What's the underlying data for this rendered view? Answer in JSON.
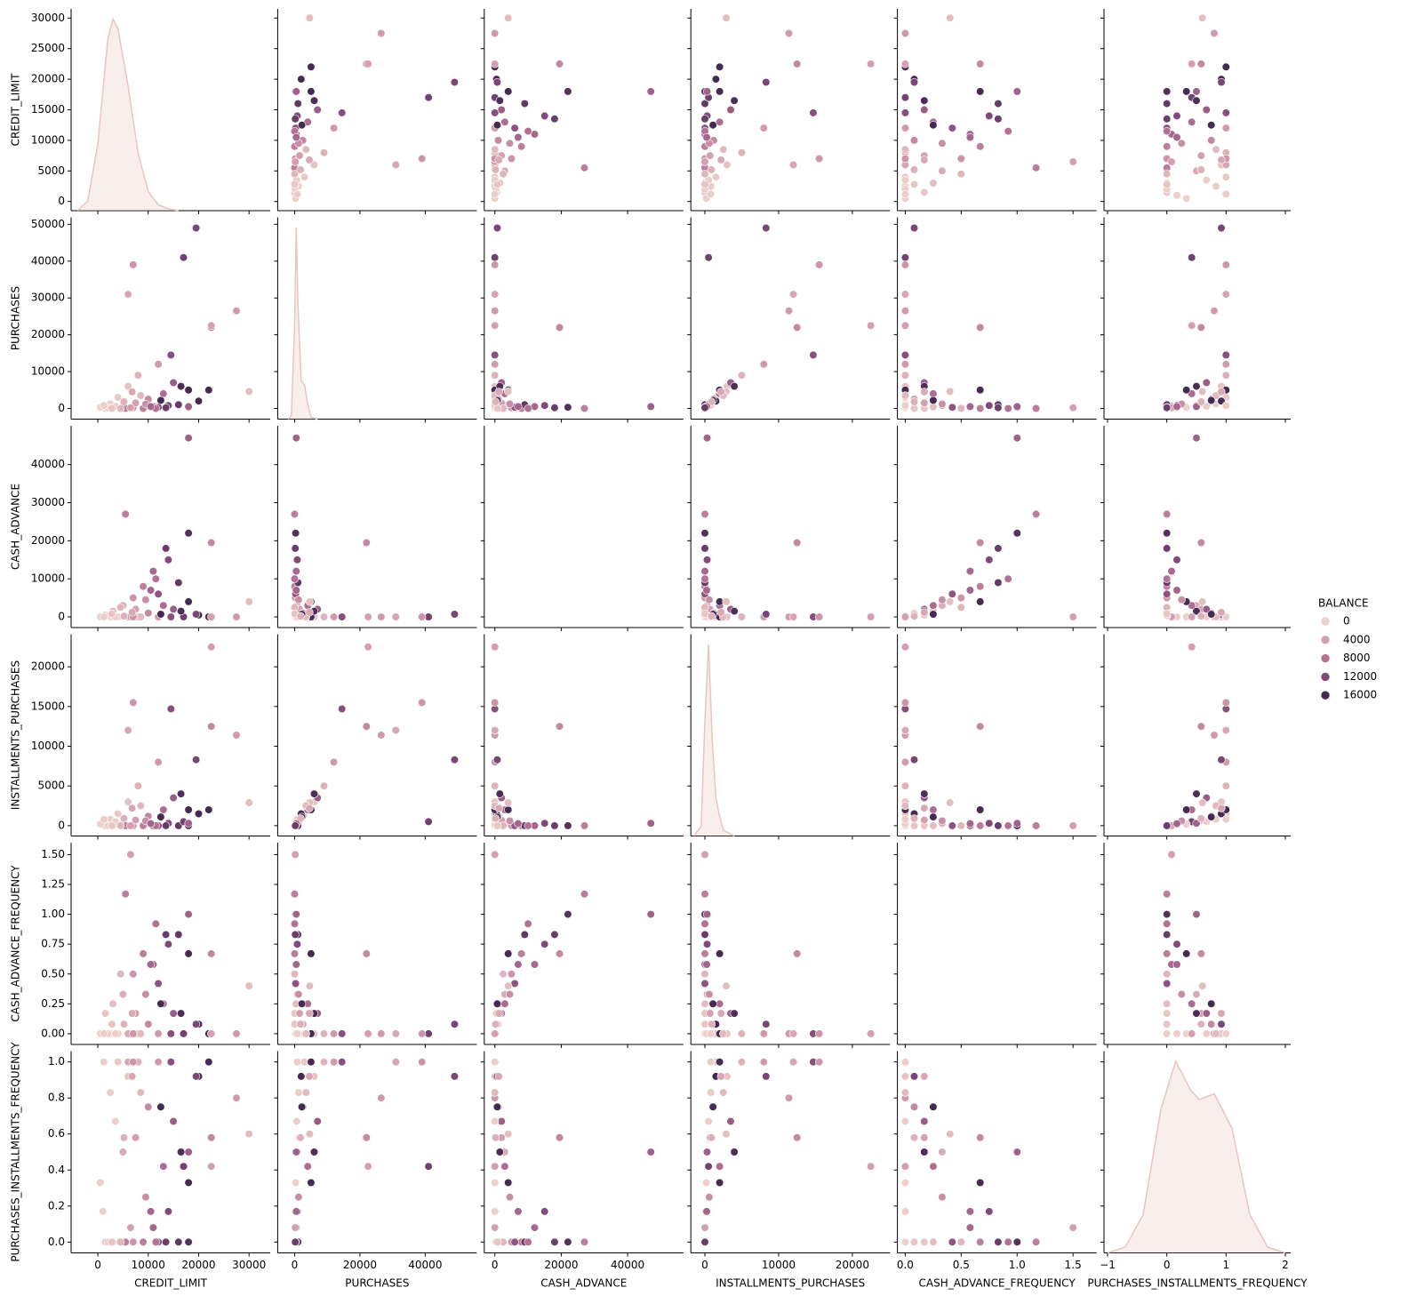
{
  "chart_data": {
    "type": "pairplot",
    "variables": [
      "CREDIT_LIMIT",
      "PURCHASES",
      "CASH_ADVANCE",
      "INSTALLMENTS_PURCHASES",
      "CASH_ADVANCE_FREQUENCY",
      "PURCHASES_INSTALLMENTS_FREQUENCY"
    ],
    "axes": [
      {
        "xlim": [
          -5300,
          34200
        ],
        "xticks": [
          0,
          10000,
          20000,
          30000
        ],
        "ylim": [
          -1500,
          31500
        ],
        "yticks": [
          0,
          5000,
          10000,
          15000,
          20000,
          25000,
          30000
        ]
      },
      {
        "xlim": [
          -5200,
          55800
        ],
        "xticks": [
          0,
          20000,
          40000
        ],
        "ylim": [
          -2900,
          51900
        ],
        "yticks": [
          0,
          10000,
          20000,
          30000,
          40000,
          50000
        ]
      },
      {
        "xlim": [
          -3200,
          56800
        ],
        "xticks": [
          0,
          20000,
          40000
        ],
        "ylim": [
          -2800,
          50200
        ],
        "yticks": [
          0,
          10000,
          20000,
          30000,
          40000
        ]
      },
      {
        "xlim": [
          -1900,
          25100
        ],
        "xticks": [
          0,
          10000,
          20000
        ],
        "ylim": [
          -1300,
          24100
        ],
        "yticks": [
          0,
          5000,
          10000,
          15000,
          20000
        ]
      },
      {
        "xlim": [
          -0.07,
          1.71
        ],
        "xticks": [
          {
            "value": 0,
            "label": "0.0"
          },
          {
            "value": 0.5,
            "label": "0.5"
          },
          {
            "value": 1,
            "label": "1.0"
          },
          {
            "value": 1.5,
            "label": "1.5"
          }
        ],
        "ylim": [
          -0.09,
          1.6
        ],
        "yticks": [
          {
            "value": 0,
            "label": "0.00"
          },
          {
            "value": 0.25,
            "label": "0.25"
          },
          {
            "value": 0.5,
            "label": "0.50"
          },
          {
            "value": 0.75,
            "label": "0.75"
          },
          {
            "value": 1,
            "label": "1.00"
          },
          {
            "value": 1.25,
            "label": "1.25"
          },
          {
            "value": 1.5,
            "label": "1.50"
          }
        ]
      },
      {
        "xlim": [
          -1.06,
          2.09
        ],
        "xticks": [
          {
            "value": -1,
            "label": "−1"
          },
          0,
          1,
          2
        ],
        "ylim": [
          -0.06,
          1.06
        ],
        "yticks": [
          {
            "value": 0,
            "label": "0.0"
          },
          {
            "value": 0.2,
            "label": "0.2"
          },
          {
            "value": 0.4,
            "label": "0.4"
          },
          {
            "value": 0.6,
            "label": "0.6"
          },
          {
            "value": 0.8,
            "label": "0.8"
          },
          {
            "value": 1,
            "label": "1.0"
          }
        ]
      }
    ],
    "hue": {
      "name": "BALANCE",
      "levels": [
        0,
        4000,
        8000,
        12000,
        16000
      ],
      "colors": [
        "#ecd0cb",
        "#d4a0b0",
        "#b27294",
        "#804a7a",
        "#452a52"
      ]
    },
    "kde": [
      {
        "x": [
          -4000,
          -2000,
          0,
          2000,
          3000,
          4000,
          6000,
          8000,
          10000,
          12000,
          14000,
          16000
        ],
        "density": [
          0,
          0.05,
          0.35,
          0.9,
          1.0,
          0.95,
          0.65,
          0.3,
          0.1,
          0.03,
          0.01,
          0
        ]
      },
      {
        "x": [
          -2000,
          -1000,
          0,
          500,
          1000,
          2000,
          3000,
          4000,
          5000,
          7000
        ],
        "density": [
          0,
          0.02,
          0.5,
          1.0,
          0.6,
          0.2,
          0.18,
          0.08,
          0.01,
          0
        ]
      },
      null,
      {
        "x": [
          -1500,
          -500,
          0,
          500,
          1000,
          1500,
          2000,
          2500,
          4000
        ],
        "density": [
          0,
          0.05,
          0.6,
          1.0,
          0.5,
          0.2,
          0.1,
          0.03,
          0
        ]
      },
      null,
      {
        "x": [
          -1,
          -0.7,
          -0.4,
          -0.1,
          0.15,
          0.4,
          0.55,
          0.8,
          1.1,
          1.4,
          1.7,
          2
        ],
        "density": [
          0,
          0.03,
          0.2,
          0.75,
          1.0,
          0.85,
          0.8,
          0.83,
          0.65,
          0.2,
          0.03,
          0
        ]
      }
    ],
    "records": [
      [
        1000,
        200,
        0,
        100,
        0,
        0.17
      ],
      [
        1500,
        0,
        500,
        0,
        0.17,
        0
      ],
      [
        2500,
        1200,
        0,
        800,
        0,
        0.83
      ],
      [
        3000,
        400,
        1500,
        0,
        0.25,
        0
      ],
      [
        4000,
        3000,
        0,
        1500,
        0,
        1.0
      ],
      [
        5000,
        800,
        3000,
        300,
        0.33,
        0.5
      ],
      [
        6000,
        6000,
        0,
        3000,
        0,
        0.92
      ],
      [
        7000,
        200,
        5000,
        0,
        0.5,
        0
      ],
      [
        7500,
        1500,
        2000,
        700,
        0.17,
        0.58
      ],
      [
        8000,
        9000,
        0,
        5000,
        0,
        1.0
      ],
      [
        9000,
        0,
        8000,
        0,
        0.67,
        0
      ],
      [
        10000,
        2500,
        1000,
        1200,
        0.08,
        0.75
      ],
      [
        11000,
        500,
        12000,
        0,
        0.58,
        0.08
      ],
      [
        12000,
        12000,
        0,
        8000,
        0,
        1.0
      ],
      [
        12000,
        300,
        6000,
        0,
        0.42,
        0
      ],
      [
        13000,
        4000,
        3000,
        2000,
        0.25,
        0.42
      ],
      [
        14000,
        800,
        15000,
        300,
        0.75,
        0.17
      ],
      [
        15000,
        7000,
        2000,
        3500,
        0.17,
        0.67
      ],
      [
        16000,
        1000,
        9000,
        0,
        0.83,
        0
      ],
      [
        17000,
        41000,
        0,
        500,
        0,
        0.42
      ],
      [
        18000,
        5000,
        4000,
        2000,
        0.67,
        0.33
      ],
      [
        18000,
        300,
        22000,
        0,
        1.0,
        0
      ],
      [
        20000,
        2000,
        500,
        1500,
        0.08,
        0.92
      ],
      [
        22000,
        5000,
        0,
        2000,
        0,
        1.0
      ],
      [
        19500,
        49000,
        700,
        8300,
        0.08,
        0.92
      ],
      [
        27500,
        26500,
        0,
        11400,
        0,
        0.8
      ],
      [
        30000,
        4600,
        4000,
        2900,
        0.4,
        0.6
      ],
      [
        22500,
        22000,
        19500,
        12500,
        0.67,
        0.58
      ],
      [
        6000,
        31000,
        0,
        12000,
        0,
        1.0
      ],
      [
        5500,
        0,
        27000,
        0,
        1.17,
        0
      ],
      [
        18000,
        500,
        47000,
        300,
        1.0,
        0.5
      ],
      [
        6500,
        200,
        0,
        0,
        1.5,
        0.08
      ],
      [
        2000,
        100,
        300,
        0,
        0,
        0
      ],
      [
        3500,
        600,
        0,
        500,
        0,
        0.67
      ],
      [
        500,
        300,
        0,
        200,
        0,
        0.33
      ],
      [
        8500,
        3500,
        0,
        2500,
        0,
        0.83
      ],
      [
        4500,
        0,
        2500,
        0,
        0.5,
        0
      ],
      [
        9500,
        1200,
        4500,
        600,
        0.33,
        0.25
      ],
      [
        11500,
        0,
        10000,
        0,
        0.92,
        0
      ],
      [
        14500,
        14500,
        0,
        14700,
        0,
        1.0
      ],
      [
        7000,
        39000,
        0,
        15500,
        0,
        1.0
      ],
      [
        12500,
        2200,
        700,
        1100,
        0.25,
        0.75
      ],
      [
        16500,
        6000,
        1500,
        4000,
        0.17,
        0.5
      ],
      [
        1200,
        800,
        0,
        800,
        0,
        1.0
      ],
      [
        2800,
        0,
        800,
        0,
        0.08,
        0
      ],
      [
        5200,
        1800,
        200,
        900,
        0.08,
        0.58
      ],
      [
        10500,
        500,
        7000,
        250,
        0.58,
        0.17
      ],
      [
        6800,
        4500,
        1200,
        2200,
        0.17,
        0.92
      ],
      [
        13500,
        200,
        18000,
        0,
        0.83,
        0
      ],
      [
        22500,
        22500,
        0,
        22500,
        0,
        0.42
      ]
    ],
    "balance": [
      50,
      800,
      300,
      1500,
      600,
      3000,
      1200,
      5000,
      4000,
      2500,
      7000,
      6000,
      9000,
      4500,
      11000,
      8500,
      12000,
      10000,
      14000,
      13000,
      17000,
      15000,
      18000,
      19000,
      12500,
      4500,
      1500,
      6000,
      3500,
      7000,
      9500,
      4000,
      100,
      200,
      20,
      1800,
      2200,
      5500,
      8000,
      11500,
      5000,
      16500,
      15500,
      150,
      900,
      2600,
      9200,
      3300,
      13500,
      4000
    ]
  }
}
